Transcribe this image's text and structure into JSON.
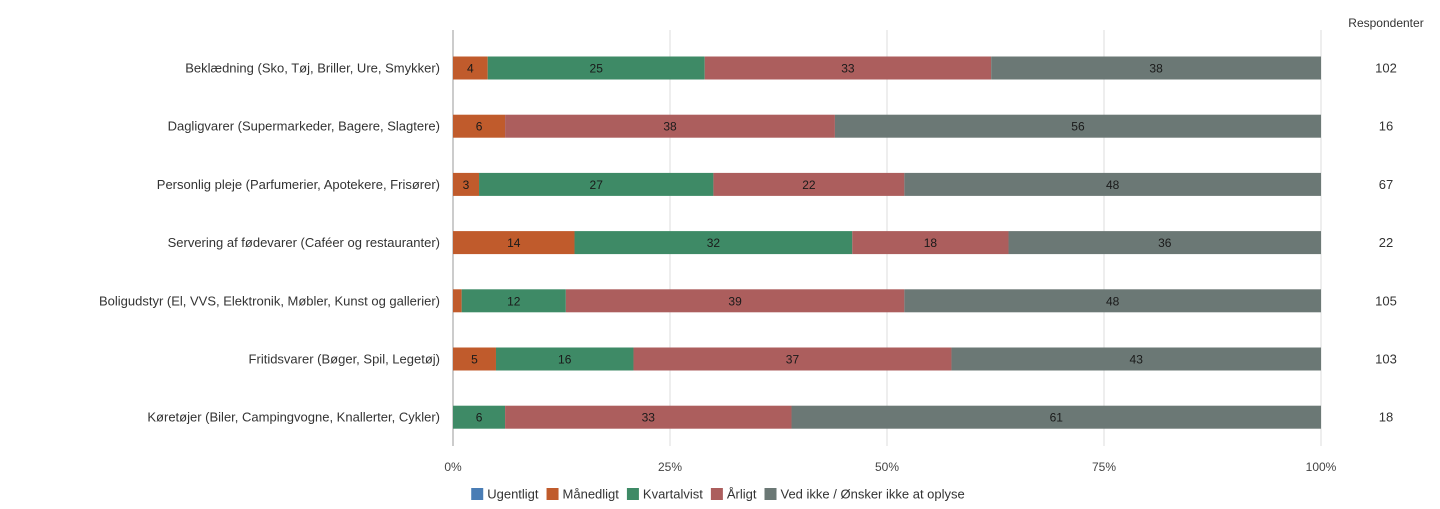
{
  "chart_data": {
    "type": "bar",
    "orientation": "horizontal",
    "stacked": true,
    "normalized": true,
    "categories": [
      "Beklædning (Sko, Tøj, Briller, Ure, Smykker)",
      "Dagligvarer (Supermarkeder, Bagere, Slagtere)",
      "Personlig pleje (Parfumerier, Apotekere, Frisører)",
      "Servering af fødevarer (Caféer og restauranter)",
      "Boligudstyr (El, VVS, Elektronik, Møbler, Kunst og gallerier)",
      "Fritidsvarer (Bøger, Spil, Legetøj)",
      "Køretøjer (Biler, Campingvogne, Knallerter, Cykler)"
    ],
    "series": [
      {
        "name": "Ugentligt",
        "color": "#4a7db5",
        "values": [
          0,
          0,
          0,
          0,
          0,
          0,
          0
        ]
      },
      {
        "name": "Månedligt",
        "color": "#c05b2c",
        "values": [
          4,
          6,
          3,
          14,
          1,
          5,
          0
        ]
      },
      {
        "name": "Kvartalvist",
        "color": "#3e8a66",
        "values": [
          25,
          0,
          27,
          32,
          12,
          16,
          6
        ]
      },
      {
        "name": "Årligt",
        "color": "#ac5e5d",
        "values": [
          33,
          38,
          22,
          18,
          39,
          37,
          33
        ]
      },
      {
        "name": "Ved ikke / Ønsker ikke at oplyse",
        "color": "#6b7875",
        "values": [
          38,
          56,
          48,
          36,
          48,
          43,
          61
        ]
      }
    ],
    "data_labels": [
      [
        "",
        "4",
        "25",
        "33",
        "38"
      ],
      [
        "",
        "6",
        "",
        "38",
        "56"
      ],
      [
        "",
        "3",
        "27",
        "22",
        "48"
      ],
      [
        "",
        "14",
        "32",
        "18",
        "36"
      ],
      [
        "",
        "",
        "12",
        "39",
        "48"
      ],
      [
        "",
        "5",
        "16",
        "37",
        "43"
      ],
      [
        "",
        "",
        "6",
        "33",
        "61"
      ]
    ],
    "xlim": [
      0,
      100
    ],
    "x_ticks": [
      0,
      25,
      50,
      75,
      100
    ],
    "x_tick_labels": [
      "0%",
      "25%",
      "50%",
      "75%",
      "100%"
    ],
    "grid": true,
    "legend_position": "bottom",
    "respondents_header": "Respondenter",
    "respondents": [
      "102",
      "16",
      "67",
      "22",
      "105",
      "103",
      "18"
    ]
  }
}
